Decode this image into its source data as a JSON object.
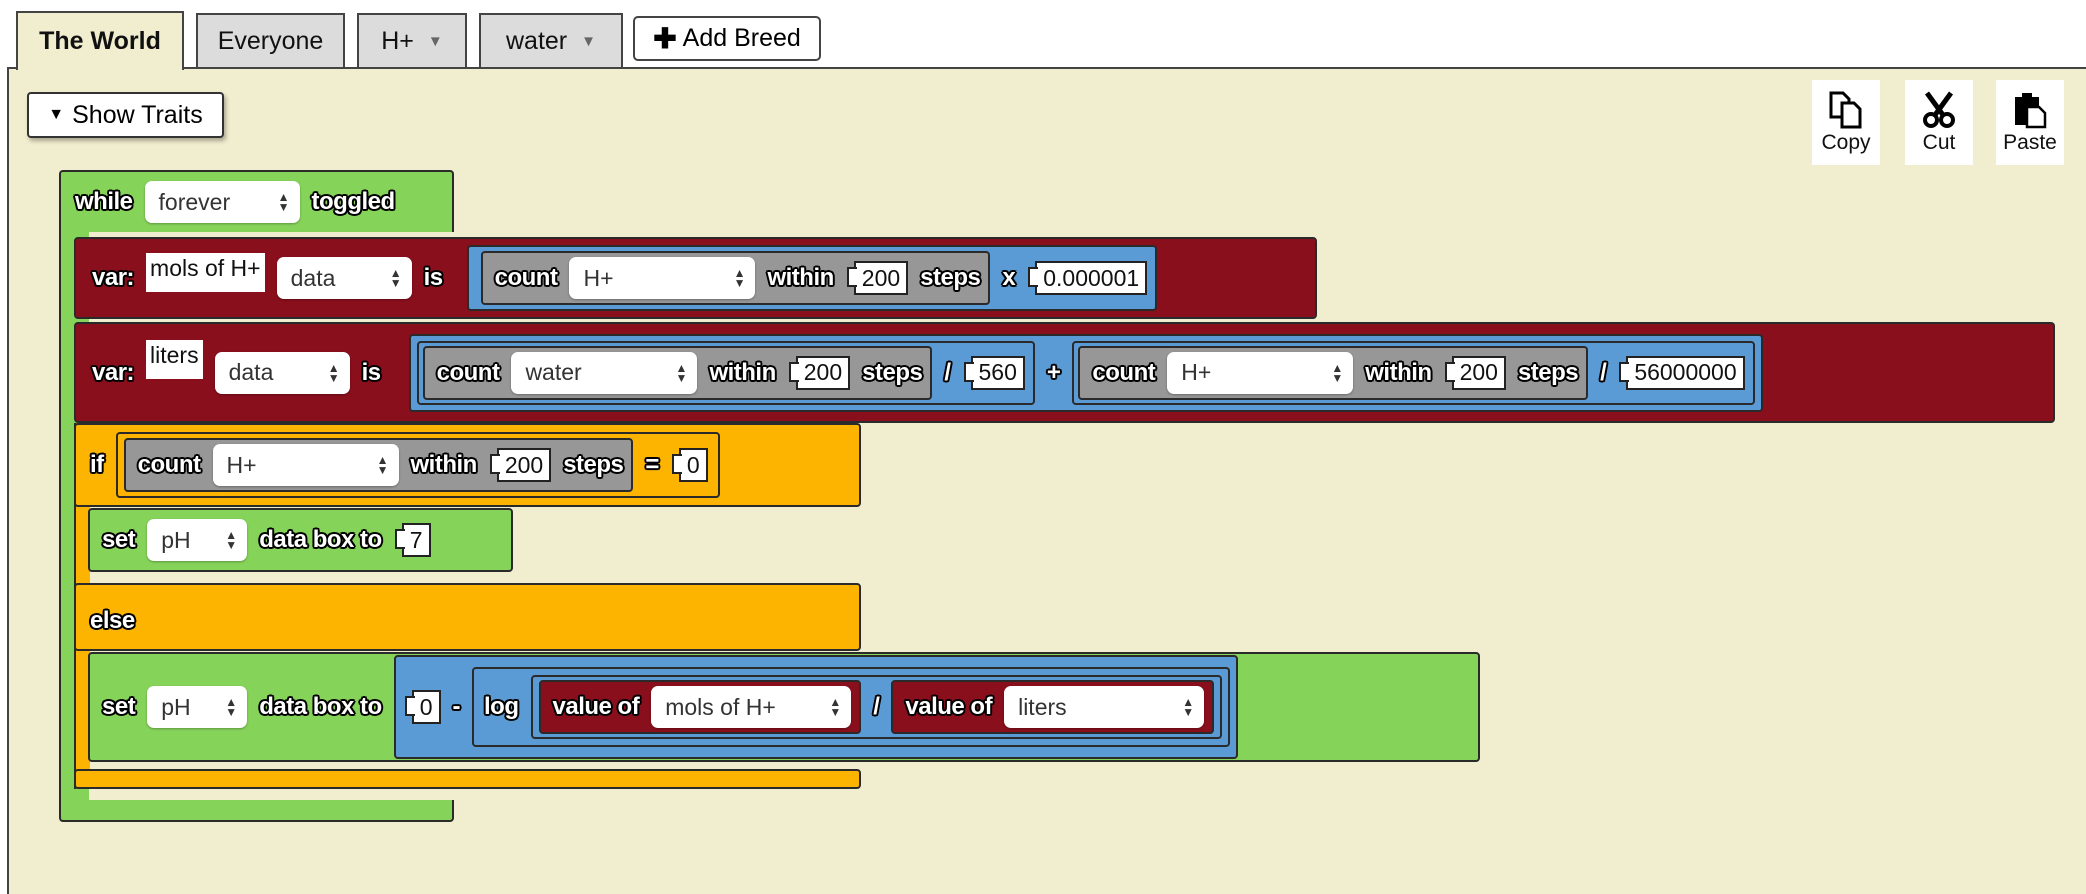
{
  "tabs": [
    {
      "label": "The World",
      "active": true
    },
    {
      "label": "Everyone"
    },
    {
      "label": "H+",
      "dropdown": true
    },
    {
      "label": "water",
      "dropdown": true
    }
  ],
  "add_breed": "Add Breed",
  "show_traits": "Show Traits",
  "clipboard": {
    "copy": "Copy",
    "cut": "Cut",
    "paste": "Paste"
  },
  "colors": {
    "workspace": "#f1edcf",
    "control": "#86d35a",
    "variable": "#8a0f1d",
    "logic": "#fcb400",
    "math": "#5b9bd5",
    "sensing": "#979797"
  },
  "program": {
    "while": {
      "kw": "while",
      "mode": "forever",
      "kw2": "toggled"
    },
    "var1": {
      "kw": "var:",
      "name": "mols of H+",
      "type": "data",
      "is": "is",
      "count": "count",
      "breed": "H+",
      "within": "within",
      "steps_value": "200",
      "steps": "steps",
      "op": "x",
      "operand": "0.000001"
    },
    "var2": {
      "kw": "var:",
      "name": "liters",
      "type": "data",
      "is": "is",
      "count": "count",
      "breed1": "water",
      "within": "within",
      "steps_value1": "200",
      "steps": "steps",
      "div": "/",
      "divisor1": "560",
      "plus": "+",
      "breed2": "H+",
      "steps_value2": "200",
      "divisor2": "56000000"
    },
    "if": {
      "kw": "if",
      "count": "count",
      "breed": "H+",
      "within": "within",
      "steps_value": "200",
      "steps": "steps",
      "eq": "=",
      "value": "0"
    },
    "set1": {
      "kw": "set",
      "var": "pH",
      "kw2": "data box to",
      "value": "7"
    },
    "else": {
      "kw": "else"
    },
    "set2": {
      "kw": "set",
      "var": "pH",
      "kw2": "data box to",
      "zero": "0",
      "minus": "-",
      "log": "log",
      "value_of": "value of",
      "var_a": "mols of H+",
      "div": "/",
      "var_b": "liters"
    }
  }
}
